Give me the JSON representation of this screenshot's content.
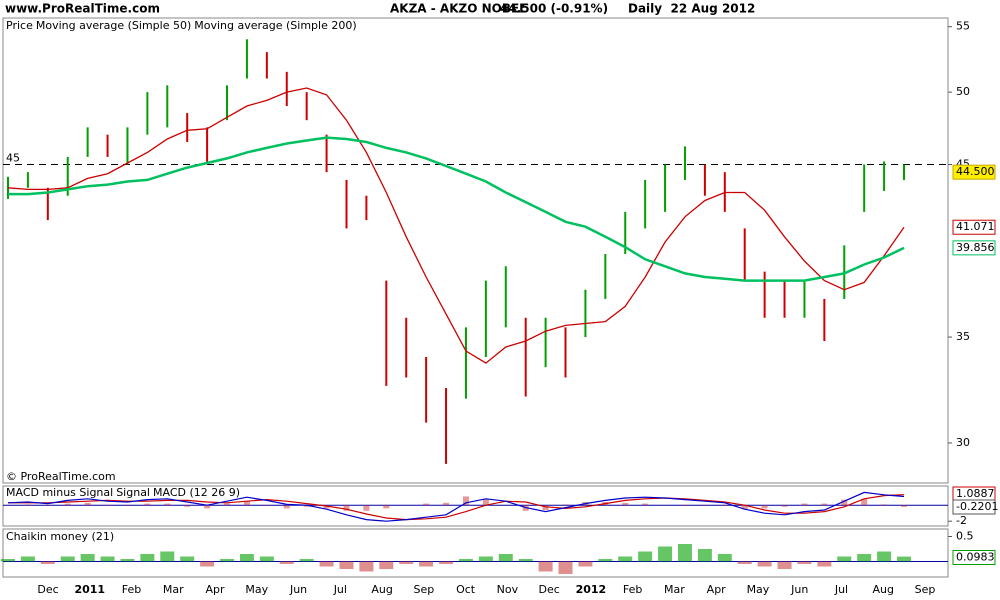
{
  "header": {
    "site": "www.ProRealTime.com",
    "instrument": "AKZA - AKZO NOBEL",
    "quote": "44.500 (-0.91%)",
    "period": "Daily  22 Aug 2012"
  },
  "x_labels": [
    "Dec",
    "2011",
    "Feb",
    "Mar",
    "Apr",
    "May",
    "Jun",
    "Jul",
    "Aug",
    "Sep",
    "Oct",
    "Nov",
    "Dec",
    "2012",
    "Feb",
    "Mar",
    "Apr",
    "May",
    "Jun",
    "Jul",
    "Aug",
    "Sep"
  ],
  "chart_data": [
    {
      "type": "price",
      "log_scale": true,
      "ylim": [
        28.3,
        55.7
      ],
      "yticks": [
        30,
        35,
        45,
        50,
        55
      ],
      "reference_line": 45,
      "last_price": {
        "value": 44.5,
        "label": "44.500"
      },
      "watermark": "© ProRealTime.com",
      "series": [
        {
          "name": "Price",
          "up_color": "#00a000",
          "down_color": "#cc0000",
          "low": [
            42.8,
            43.5,
            41.5,
            43,
            45.5,
            45.5,
            45,
            47,
            47.5,
            46.5,
            45,
            48,
            51,
            51,
            49,
            48,
            44.5,
            41,
            41.5,
            32.6,
            33,
            30.9,
            29.1,
            32,
            34,
            35.5,
            32.1,
            33.5,
            33,
            35,
            37,
            39.5,
            41,
            42,
            44,
            43,
            42,
            38,
            36,
            36,
            36,
            34.8,
            37,
            42,
            43.3,
            44
          ],
          "high": [
            44.2,
            44.5,
            43.5,
            45.5,
            47.5,
            47,
            47.5,
            50,
            50.5,
            48.5,
            47.5,
            50.5,
            54,
            53,
            51.5,
            50,
            47,
            44,
            43,
            38,
            36,
            34,
            32.5,
            35.5,
            38,
            38.8,
            36,
            36,
            35.5,
            37.5,
            39.5,
            42,
            44,
            45,
            46.2,
            45,
            44.5,
            41,
            38.5,
            38,
            38,
            37,
            40,
            45,
            45.2,
            45
          ]
        },
        {
          "name": "Moving average (Simple 50)",
          "color": "#cc0000",
          "values": [
            43.5,
            43.4,
            43.4,
            43.5,
            44.1,
            44.4,
            45.1,
            45.8,
            46.7,
            47.3,
            47.4,
            48.2,
            49,
            49.4,
            50,
            50.3,
            49.8,
            48,
            45.8,
            43.2,
            40.5,
            38.2,
            36.2,
            34.3,
            33.7,
            34.5,
            34.8,
            35.3,
            35.6,
            35.7,
            35.8,
            36.6,
            38.2,
            40.2,
            41.7,
            42.7,
            43.2,
            43.2,
            42.1,
            40.5,
            39.1,
            38,
            37.5,
            37.9,
            39.4,
            41.071
          ]
        },
        {
          "name": "Moving average (Simple 200)",
          "color": "#00c060",
          "values": [
            43.1,
            43.1,
            43.2,
            43.4,
            43.6,
            43.7,
            43.9,
            44,
            44.4,
            44.8,
            45.1,
            45.4,
            45.8,
            46.1,
            46.4,
            46.6,
            46.8,
            46.7,
            46.5,
            46.1,
            45.8,
            45.4,
            44.9,
            44.4,
            43.9,
            43.2,
            42.6,
            42,
            41.4,
            41.1,
            40.5,
            39.9,
            39.2,
            38.8,
            38.4,
            38.2,
            38.1,
            38,
            38,
            38,
            38,
            38.2,
            38.4,
            38.9,
            39.3,
            39.856
          ]
        }
      ]
    },
    {
      "type": "macd",
      "ylim": [
        -2.6,
        2.4
      ],
      "yticks": [
        -2
      ],
      "series": [
        {
          "name": "MACD minus Signal",
          "color": "#cc3333",
          "values": [
            0,
            0.1,
            -0.1,
            0.2,
            0.3,
            -0.1,
            -0.1,
            0.2,
            0.2,
            -0.2,
            -0.4,
            0.2,
            0.5,
            -0.1,
            -0.4,
            -0.2,
            -0.4,
            -0.7,
            -0.7,
            -0.4,
            0,
            0.2,
            0.3,
            1.1,
            0.8,
            0,
            -0.7,
            -0.6,
            0.1,
            0.4,
            0.4,
            0.3,
            0.2,
            0,
            -0.1,
            -0.1,
            -0.1,
            -0.5,
            -0.4,
            -0.2,
            0.2,
            0.2,
            0.7,
            0.8,
            0.1,
            -0.2201
          ]
        },
        {
          "name": "Signal",
          "color": "#cc0000",
          "values": [
            0.3,
            0.3,
            0.3,
            0.4,
            0.5,
            0.6,
            0.5,
            0.5,
            0.6,
            0.6,
            0.4,
            0.3,
            0.5,
            0.7,
            0.5,
            0.2,
            -0.1,
            -0.5,
            -1.1,
            -1.6,
            -1.8,
            -1.7,
            -1.5,
            -0.8,
            0,
            0.5,
            0.4,
            -0.2,
            -0.4,
            -0.2,
            0.2,
            0.6,
            0.8,
            0.9,
            0.8,
            0.6,
            0.4,
            0,
            -0.6,
            -1,
            -1,
            -0.8,
            -0.2,
            0.8,
            1.2,
            1.3088
          ]
        },
        {
          "name": "MACD (12 26 9)",
          "color": "#0000cc",
          "values": [
            0.3,
            0.4,
            0.2,
            0.6,
            0.8,
            0.5,
            0.4,
            0.7,
            0.8,
            0.4,
            0,
            0.5,
            1,
            0.6,
            0.1,
            0,
            -0.5,
            -1.2,
            -1.8,
            -2,
            -1.8,
            -1.5,
            -1.2,
            0.3,
            0.8,
            0.5,
            -0.3,
            -0.8,
            -0.3,
            0.2,
            0.6,
            0.9,
            1,
            0.9,
            0.7,
            0.5,
            0.3,
            -0.5,
            -1,
            -1.2,
            -0.8,
            -0.6,
            0.5,
            1.6,
            1.3,
            1.0887
          ]
        }
      ]
    },
    {
      "type": "chaikin",
      "ylim": [
        -0.31,
        0.65
      ],
      "yticks": [
        0.5
      ],
      "series": [
        {
          "name": "Chaikin money (21)",
          "color": "#00a000",
          "values": [
            0.05,
            0.1,
            -0.05,
            0.1,
            0.15,
            0.1,
            0.05,
            0.15,
            0.2,
            0.1,
            -0.1,
            0.05,
            0.15,
            0.1,
            -0.05,
            0.05,
            -0.1,
            -0.15,
            -0.2,
            -0.15,
            -0.05,
            -0.1,
            -0.05,
            0.05,
            0.1,
            0.15,
            0.05,
            -0.2,
            -0.25,
            -0.1,
            0.05,
            0.1,
            0.2,
            0.3,
            0.35,
            0.25,
            0.15,
            -0.05,
            -0.1,
            -0.15,
            -0.05,
            -0.1,
            0.1,
            0.15,
            0.2,
            0.0983
          ]
        }
      ]
    }
  ]
}
